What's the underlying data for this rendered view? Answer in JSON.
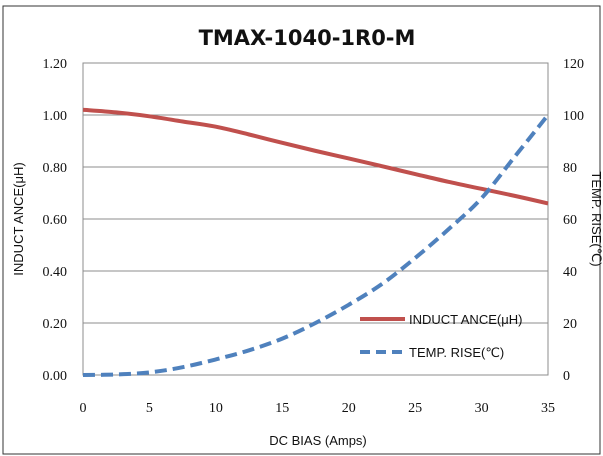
{
  "chart_data": {
    "type": "line",
    "title": "TMAX-1040-1R0-M",
    "xlabel": "DC BIAS (Amps)",
    "ylabel": "INDUCT ANCE(μH)",
    "y2label": "TEMP. RISE(℃)",
    "xlim": [
      0,
      35
    ],
    "ylim": [
      0,
      1.2
    ],
    "y2lim": [
      0,
      120
    ],
    "x_ticks": [
      "0",
      "5",
      "10",
      "15",
      "20",
      "25",
      "30",
      "35"
    ],
    "y_ticks": [
      "0.00",
      "0.20",
      "0.40",
      "0.60",
      "0.80",
      "1.00",
      "1.20"
    ],
    "y2_ticks": [
      "0",
      "20",
      "40",
      "60",
      "80",
      "100",
      "120"
    ],
    "grid": "horizontal",
    "legend_position": "bottom-right",
    "series": [
      {
        "name": "INDUCT ANCE(μH)",
        "axis": "left",
        "color": "#c0504d",
        "style": "solid",
        "x": [
          0,
          2.5,
          5,
          7.5,
          10,
          12.5,
          15,
          17.5,
          20,
          22.5,
          25,
          27.5,
          30,
          32.5,
          35
        ],
        "y": [
          1.02,
          1.01,
          0.995,
          0.975,
          0.955,
          0.925,
          0.893,
          0.862,
          0.833,
          0.803,
          0.773,
          0.743,
          0.716,
          0.689,
          0.66
        ]
      },
      {
        "name": "TEMP. RISE(℃)",
        "axis": "right",
        "color": "#4f81bd",
        "style": "dashed",
        "x": [
          0,
          2.5,
          5,
          7.5,
          10,
          12.5,
          15,
          17.5,
          20,
          22.5,
          25,
          27.5,
          30,
          32.5,
          35
        ],
        "y": [
          0,
          0.2,
          1,
          3,
          6,
          9.5,
          14,
          20,
          27,
          35,
          45,
          56,
          68,
          84,
          100
        ]
      }
    ]
  }
}
